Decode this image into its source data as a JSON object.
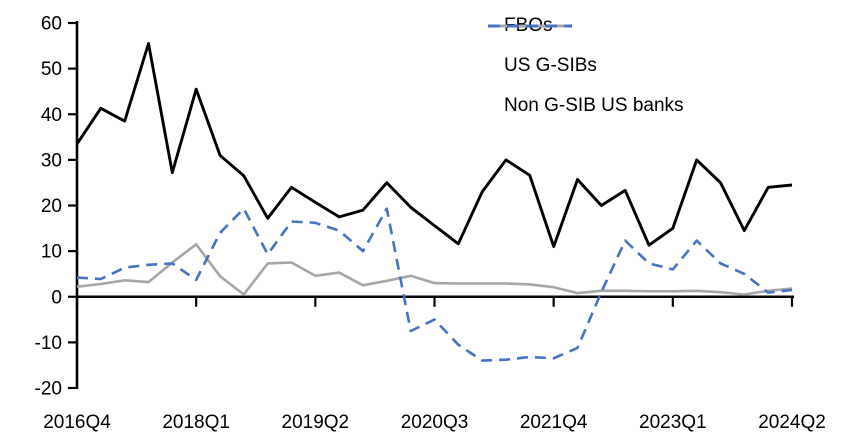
{
  "chart_data": {
    "type": "line",
    "title": "",
    "xlabel": "",
    "ylabel": "",
    "grid": false,
    "legend_position": "top-right",
    "y_axis": {
      "min": -20,
      "max": 60,
      "step": 10
    },
    "x_tick_label_indices": [
      0,
      5,
      10,
      15,
      20,
      25,
      30
    ],
    "x_tick_labels": [
      "2016Q4",
      "2018Q1",
      "2019Q2",
      "2020Q3",
      "2021Q4",
      "2023Q1",
      "2024Q2"
    ],
    "categories": [
      "2016Q4",
      "2017Q1",
      "2017Q2",
      "2017Q3",
      "2017Q4",
      "2018Q1",
      "2018Q2",
      "2018Q3",
      "2018Q4",
      "2019Q1",
      "2019Q2",
      "2019Q3",
      "2019Q4",
      "2020Q1",
      "2020Q2",
      "2020Q3",
      "2020Q4",
      "2021Q1",
      "2021Q2",
      "2021Q3",
      "2021Q4",
      "2022Q1",
      "2022Q2",
      "2022Q3",
      "2022Q4",
      "2023Q1",
      "2023Q2",
      "2023Q3",
      "2023Q4",
      "2024Q1",
      "2024Q2"
    ],
    "series": [
      {
        "name": "FBOs",
        "color": "#000000",
        "style": "solid",
        "values": [
          33.5,
          41.3,
          38.5,
          55.5,
          27.2,
          45.5,
          31,
          26.5,
          17.2,
          24,
          20.7,
          17.5,
          19,
          25,
          19.6,
          15.6,
          11.6,
          23,
          30,
          26.6,
          11,
          25.7,
          20,
          23.3,
          11.3,
          15,
          30,
          25,
          14.5,
          24,
          24.5
        ]
      },
      {
        "name": "US G-SIBs",
        "color": "#a6a6a6",
        "style": "solid",
        "values": [
          2.2,
          2.8,
          3.6,
          3.2,
          7.5,
          11.5,
          4.5,
          0.5,
          7.3,
          7.5,
          4.6,
          5.3,
          2.5,
          3.5,
          4.6,
          3,
          2.9,
          2.9,
          2.9,
          2.7,
          2.1,
          0.8,
          1.3,
          1.3,
          1.2,
          1.2,
          1.3,
          1,
          0.5,
          1.3,
          1.8
        ]
      },
      {
        "name": "Non G-SIB US banks",
        "color": "#4472c4",
        "style": "dashed",
        "values": [
          4.2,
          3.9,
          6.4,
          7,
          7.3,
          3.7,
          14,
          19.3,
          9.3,
          16.5,
          16.2,
          14.5,
          10,
          19.3,
          -7.5,
          -5,
          -10.5,
          -14,
          -13.8,
          -13.2,
          -13.5,
          -11.2,
          1,
          12.3,
          7.3,
          6,
          12.3,
          7.3,
          5,
          0.9,
          1.5
        ]
      }
    ]
  }
}
